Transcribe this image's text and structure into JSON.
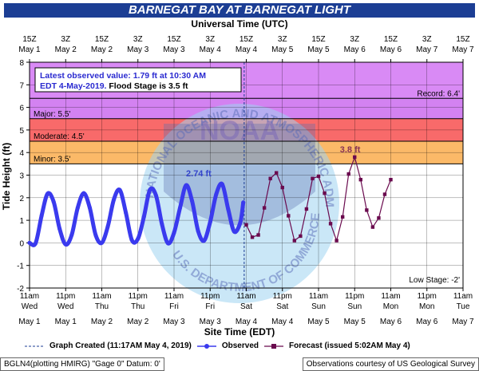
{
  "title": "BARNEGAT BAY AT BARNEGAT LIGHT",
  "top_axis_title": "Universal Time (UTC)",
  "bottom_axis_title": "Site Time (EDT)",
  "ylabel": "Tide Height (ft)",
  "info_box": {
    "line1": "Latest observed value: 1.79 ft at 10:30 AM",
    "line2_blue": "EDT 4-May-2019.",
    "line2_black": "Flood Stage is 3.5 ft"
  },
  "legend": {
    "created": "Graph Created (11:17AM May 4, 2019)",
    "observed": "Observed",
    "forecast": "Forecast (issued 5:02AM May 4)"
  },
  "footer": {
    "left": "BGLN4(plotting HMIRG) \"Gage 0\" Datum: 0'",
    "right": "Observations courtesy of US Geological Survey"
  },
  "watermark": {
    "agency": "NOAA",
    "ring_top": "NATIONAL OCEANIC AND ATMOSPHERIC ADMINISTRATION",
    "ring_bottom": "U.S. DEPARTMENT OF COMMERCE"
  },
  "colors": {
    "record": "#d98af5",
    "major": "#cc77ee",
    "moderate": "#f86a6a",
    "minor": "#fbb968",
    "observed": "#3a3aee",
    "forecast": "#6a0a4e",
    "title_bar": "#1c3e94"
  },
  "chart_data": {
    "type": "line",
    "title": "BARNEGAT BAY AT BARNEGAT LIGHT",
    "xlabel": "Site Time (EDT)",
    "ylabel": "Tide Height (ft)",
    "ylim": [
      -2,
      8
    ],
    "xlim_hours": [
      0,
      144
    ],
    "yticks": [
      -2,
      -1,
      0,
      1,
      2,
      3,
      4,
      5,
      6,
      7,
      8
    ],
    "top_ticks": [
      {
        "h": 0,
        "l1": "15Z",
        "l2": "May 1"
      },
      {
        "h": 12,
        "l1": "3Z",
        "l2": "May 2"
      },
      {
        "h": 24,
        "l1": "15Z",
        "l2": "May 2"
      },
      {
        "h": 36,
        "l1": "3Z",
        "l2": "May 3"
      },
      {
        "h": 48,
        "l1": "15Z",
        "l2": "May 3"
      },
      {
        "h": 60,
        "l1": "3Z",
        "l2": "May 4"
      },
      {
        "h": 72,
        "l1": "15Z",
        "l2": "May 4"
      },
      {
        "h": 84,
        "l1": "3Z",
        "l2": "May 5"
      },
      {
        "h": 96,
        "l1": "15Z",
        "l2": "May 5"
      },
      {
        "h": 108,
        "l1": "3Z",
        "l2": "May 6"
      },
      {
        "h": 120,
        "l1": "15Z",
        "l2": "May 6"
      },
      {
        "h": 132,
        "l1": "3Z",
        "l2": "May 7"
      },
      {
        "h": 144,
        "l1": "15Z",
        "l2": "May 7"
      }
    ],
    "bottom_ticks": [
      {
        "h": 0,
        "l1": "11am",
        "l2": "Wed",
        "l3": "May 1"
      },
      {
        "h": 12,
        "l1": "11pm",
        "l2": "Wed",
        "l3": "May 1"
      },
      {
        "h": 24,
        "l1": "11am",
        "l2": "Thu",
        "l3": "May 2"
      },
      {
        "h": 36,
        "l1": "11pm",
        "l2": "Thu",
        "l3": "May 2"
      },
      {
        "h": 48,
        "l1": "11am",
        "l2": "Fri",
        "l3": "May 3"
      },
      {
        "h": 60,
        "l1": "11pm",
        "l2": "Fri",
        "l3": "May 3"
      },
      {
        "h": 72,
        "l1": "11am",
        "l2": "Sat",
        "l3": "May 4"
      },
      {
        "h": 84,
        "l1": "11pm",
        "l2": "Sat",
        "l3": "May 4"
      },
      {
        "h": 96,
        "l1": "11am",
        "l2": "Sun",
        "l3": "May 5"
      },
      {
        "h": 108,
        "l1": "11pm",
        "l2": "Sun",
        "l3": "May 5"
      },
      {
        "h": 120,
        "l1": "11am",
        "l2": "Mon",
        "l3": "May 6"
      },
      {
        "h": 132,
        "l1": "11pm",
        "l2": "Mon",
        "l3": "May 6"
      },
      {
        "h": 144,
        "l1": "11am",
        "l2": "Tue",
        "l3": "May 7"
      }
    ],
    "stages": [
      {
        "name": "Record",
        "value": 6.4,
        "label": "Record: 6.4'"
      },
      {
        "name": "Major",
        "value": 5.5,
        "label": "Major: 5.5'"
      },
      {
        "name": "Moderate",
        "value": 4.5,
        "label": "Moderate: 4.5'"
      },
      {
        "name": "Minor",
        "value": 3.5,
        "label": "Minor: 3.5'"
      },
      {
        "name": "Low Stage",
        "value": -2,
        "label": "Low Stage: -2'"
      }
    ],
    "graph_created_hour": 71.3,
    "annotations": [
      {
        "h": 56.2,
        "y": 2.74,
        "text": "2.74 ft",
        "color": "#3344cc"
      },
      {
        "h": 106.5,
        "y": 3.8,
        "text": "3.8 ft",
        "color": "#883355"
      }
    ],
    "series": [
      {
        "name": "Observed",
        "x": [
          0,
          2,
          4,
          6,
          8,
          10,
          12,
          14,
          16,
          18,
          20,
          22,
          24,
          26,
          28,
          30,
          32,
          34,
          36,
          38,
          40,
          42,
          44,
          46,
          48,
          50,
          52,
          54,
          56,
          58,
          60,
          62,
          64,
          66,
          68,
          70,
          71
        ],
        "values": [
          0.0,
          -0.02,
          1.2,
          2.18,
          1.82,
          0.62,
          -0.07,
          0.35,
          1.55,
          2.2,
          1.56,
          0.33,
          0.0,
          0.72,
          1.92,
          2.34,
          1.33,
          0.12,
          0.18,
          1.16,
          2.35,
          2.1,
          0.82,
          -0.02,
          0.45,
          1.55,
          2.55,
          1.85,
          0.52,
          0.1,
          0.93,
          2.15,
          2.6,
          1.48,
          0.5,
          0.9,
          1.79
        ]
      },
      {
        "name": "Forecast",
        "x": [
          72,
          74,
          76,
          78,
          80,
          82,
          84,
          86,
          88,
          90,
          92,
          94,
          96,
          98,
          100,
          102,
          104,
          106,
          108,
          110,
          112,
          114,
          116,
          118,
          120
        ],
        "values": [
          0.8,
          0.25,
          0.35,
          1.55,
          2.85,
          3.1,
          2.45,
          1.2,
          0.1,
          0.3,
          1.5,
          2.85,
          2.95,
          2.2,
          0.85,
          0.1,
          1.15,
          3.05,
          3.8,
          2.8,
          1.45,
          0.7,
          1.1,
          2.15,
          2.8
        ]
      }
    ]
  }
}
